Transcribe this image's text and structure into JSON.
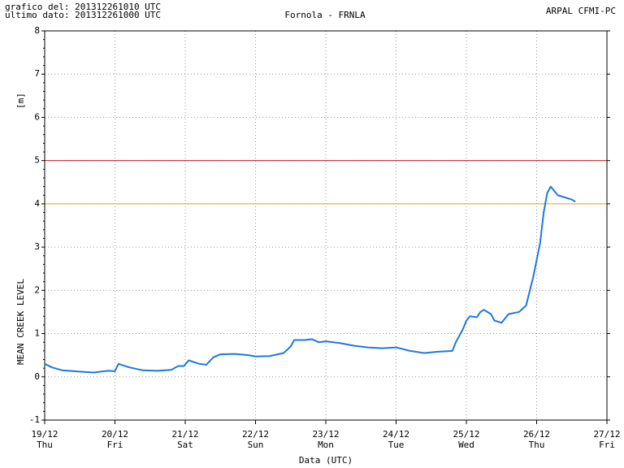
{
  "chart_data": {
    "type": "line",
    "title": "Fornola - FRNLA",
    "header_left": [
      "grafico del: 201312261010 UTC",
      "ultimo dato: 201312261000 UTC"
    ],
    "header_right": "ARPAL CFMI-PC",
    "y_unit": "[m]",
    "y_label": "MEAN CREEK LEVEL",
    "x_label": "Data (UTC)",
    "xlim": [
      0,
      8
    ],
    "xticks": [
      {
        "value": 0,
        "label": "19/12"
      },
      {
        "value": 1,
        "label": "20/12"
      },
      {
        "value": 2,
        "label": "21/12"
      },
      {
        "value": 3,
        "label": "22/12"
      },
      {
        "value": 4,
        "label": "23/12"
      },
      {
        "value": 5,
        "label": "24/12"
      },
      {
        "value": 6,
        "label": "25/12"
      },
      {
        "value": 7,
        "label": "26/12"
      },
      {
        "value": 8,
        "label": "27/12"
      }
    ],
    "x_weekdays": [
      "Thu",
      "Fri",
      "Sat",
      "Sun",
      "Mon",
      "Tue",
      "Wed",
      "Thu",
      "Fri"
    ],
    "ylim": [
      -1,
      8
    ],
    "yticks": [
      -1,
      0,
      1,
      2,
      3,
      4,
      5,
      6,
      7,
      8
    ],
    "grid": true,
    "thresholds": [
      {
        "value": 5,
        "color": "#cc2020"
      },
      {
        "value": 4,
        "color": "#e8a020"
      }
    ],
    "series": [
      {
        "name": "MEAN CREEK LEVEL",
        "color": "#1e78e0",
        "x": [
          0,
          0.1,
          0.25,
          0.5,
          0.7,
          0.9,
          1.0,
          1.05,
          1.2,
          1.4,
          1.6,
          1.8,
          1.9,
          1.98,
          2.05,
          2.2,
          2.3,
          2.4,
          2.5,
          2.7,
          2.9,
          3.0,
          3.2,
          3.4,
          3.5,
          3.55,
          3.7,
          3.8,
          3.9,
          4.0,
          4.2,
          4.4,
          4.6,
          4.8,
          5.0,
          5.2,
          5.4,
          5.6,
          5.8,
          5.85,
          5.95,
          6.0,
          6.05,
          6.15,
          6.2,
          6.25,
          6.35,
          6.4,
          6.5,
          6.6,
          6.75,
          6.85,
          6.95,
          7.0,
          7.05,
          7.1,
          7.15,
          7.2,
          7.3,
          7.4,
          7.5,
          7.55
        ],
        "values": [
          0.3,
          0.22,
          0.15,
          0.12,
          0.1,
          0.14,
          0.13,
          0.3,
          0.22,
          0.15,
          0.14,
          0.16,
          0.25,
          0.25,
          0.38,
          0.3,
          0.28,
          0.45,
          0.52,
          0.53,
          0.5,
          0.47,
          0.48,
          0.55,
          0.7,
          0.85,
          0.85,
          0.87,
          0.8,
          0.82,
          0.78,
          0.72,
          0.68,
          0.66,
          0.68,
          0.6,
          0.55,
          0.58,
          0.6,
          0.8,
          1.1,
          1.3,
          1.4,
          1.38,
          1.5,
          1.55,
          1.45,
          1.3,
          1.25,
          1.45,
          1.5,
          1.65,
          2.3,
          2.7,
          3.1,
          3.8,
          4.25,
          4.4,
          4.2,
          4.15,
          4.1,
          4.05
        ]
      }
    ]
  }
}
